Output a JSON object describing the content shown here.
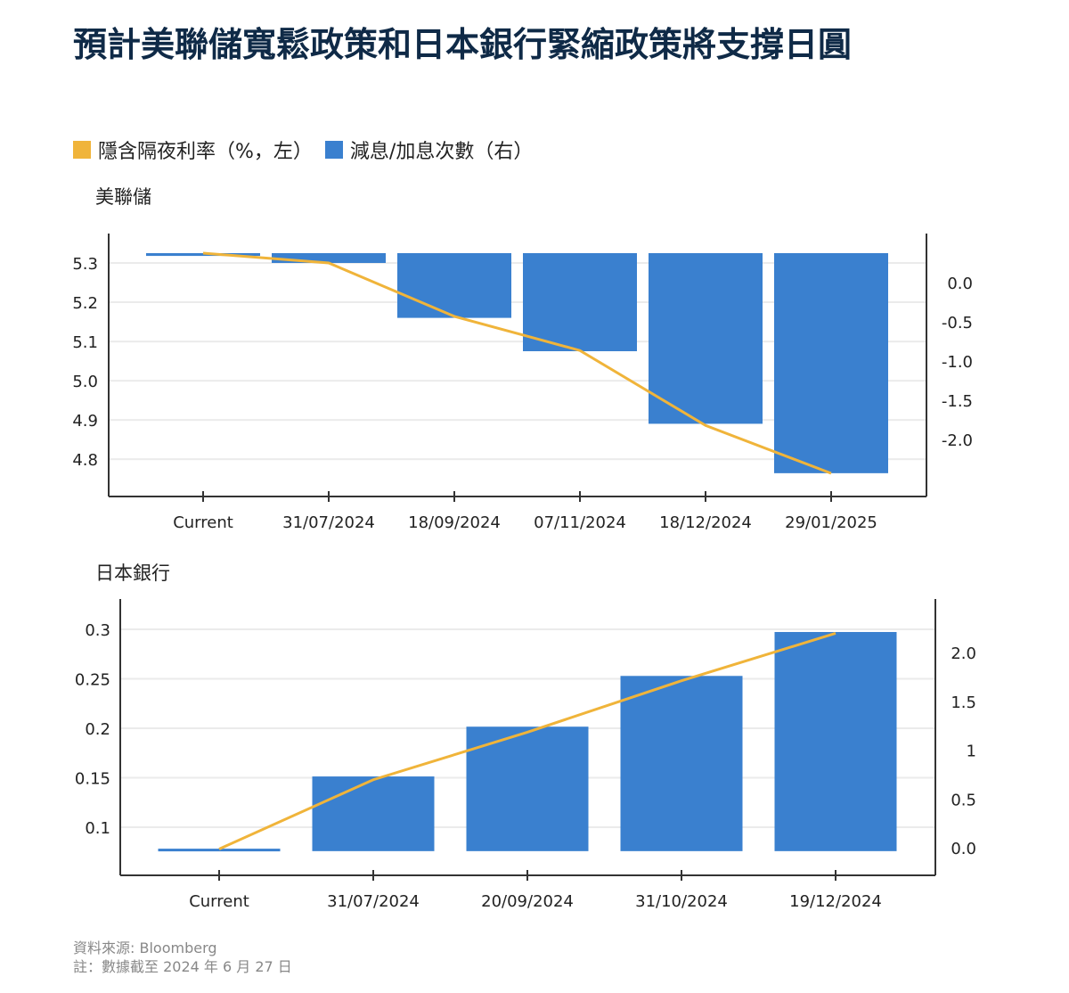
{
  "title": "預計美聯儲寬鬆政策和日本銀行緊縮政策將支撐日圓",
  "legend": [
    {
      "label": "隱含隔夜利率（%，左）",
      "color": "#f0b43a"
    },
    {
      "label": "減息/加息次數（右）",
      "color": "#3a80cf"
    }
  ],
  "colors": {
    "line": "#f0b43a",
    "bar": "#3a80cf",
    "grid": "#ebebeb",
    "axis": "#333333"
  },
  "chart_data": [
    {
      "type": "bar+line",
      "subtitle": "美聯儲",
      "categories": [
        "Current",
        "31/07/2024",
        "18/09/2024",
        "07/11/2024",
        "18/12/2024",
        "29/01/2025"
      ],
      "line": {
        "name": "隱含隔夜利率（%，左）",
        "axis": "left",
        "values": [
          5.325,
          5.3,
          5.164,
          5.077,
          4.886,
          4.764
        ]
      },
      "bars": {
        "name": "減息/加息次數（右）",
        "axis": "right",
        "baseline": 0.375,
        "values": [
          0.34,
          0.25,
          -0.45,
          -0.875,
          -1.8,
          -2.43
        ]
      },
      "left_axis": {
        "ticks": [
          "5.3",
          "5.2",
          "5.1",
          "5.0",
          "4.9",
          "4.8"
        ],
        "ylim": [
          4.705,
          5.375
        ]
      },
      "right_axis": {
        "ticks": [
          "0.0",
          "-0.5",
          "-1.0",
          "-1.5",
          "-2.0"
        ],
        "ylim": [
          -2.727,
          0.625
        ]
      },
      "grid": true
    },
    {
      "type": "bar+line",
      "subtitle": "日本銀行",
      "categories": [
        "Current",
        "31/07/2024",
        "20/09/2024",
        "31/10/2024",
        "19/12/2024"
      ],
      "line": {
        "name": "隱含隔夜利率（%，左）",
        "axis": "left",
        "values": [
          0.078,
          0.148,
          0.196,
          0.248,
          0.296
        ]
      },
      "bars": {
        "name": "減息/加息次數（右）",
        "axis": "right",
        "baseline": -0.035,
        "values": [
          -0.01,
          0.73,
          1.24,
          1.76,
          2.21
        ]
      },
      "left_axis": {
        "ticks": [
          "0.3",
          "0.25",
          "0.2",
          "0.15",
          "0.1"
        ],
        "ylim": [
          0.0514,
          0.3306
        ]
      },
      "right_axis": {
        "ticks": [
          "2.0",
          "1.5",
          "1",
          "0.5",
          "0.0"
        ],
        "ylim": [
          -0.283,
          2.548
        ]
      },
      "grid": true
    }
  ],
  "source": "資料來源: Bloomberg",
  "note": "註：數據截至 2024 年 6 月 27 日"
}
